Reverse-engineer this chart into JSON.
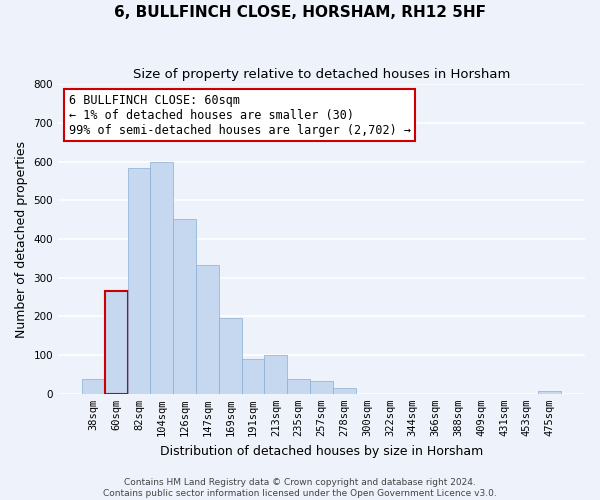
{
  "title": "6, BULLFINCH CLOSE, HORSHAM, RH12 5HF",
  "subtitle": "Size of property relative to detached houses in Horsham",
  "bar_labels": [
    "38sqm",
    "60sqm",
    "82sqm",
    "104sqm",
    "126sqm",
    "147sqm",
    "169sqm",
    "191sqm",
    "213sqm",
    "235sqm",
    "257sqm",
    "278sqm",
    "300sqm",
    "322sqm",
    "344sqm",
    "366sqm",
    "388sqm",
    "409sqm",
    "431sqm",
    "453sqm",
    "475sqm"
  ],
  "bar_heights": [
    38,
    265,
    585,
    600,
    453,
    332,
    197,
    90,
    100,
    38,
    32,
    14,
    0,
    0,
    0,
    0,
    0,
    0,
    0,
    0,
    8
  ],
  "bar_color": "#c5d8f0",
  "highlight_bar_index": 1,
  "highlight_edge_color": "#cc0000",
  "ylim": [
    0,
    800
  ],
  "yticks": [
    0,
    100,
    200,
    300,
    400,
    500,
    600,
    700,
    800
  ],
  "ylabel": "Number of detached properties",
  "xlabel": "Distribution of detached houses by size in Horsham",
  "annotation_title": "6 BULLFINCH CLOSE: 60sqm",
  "annotation_line1": "← 1% of detached houses are smaller (30)",
  "annotation_line2": "99% of semi-detached houses are larger (2,702) →",
  "footer1": "Contains HM Land Registry data © Crown copyright and database right 2024.",
  "footer2": "Contains public sector information licensed under the Open Government Licence v3.0.",
  "background_color": "#eef2fa",
  "grid_color": "#ffffff",
  "title_fontsize": 11,
  "subtitle_fontsize": 9.5,
  "axis_label_fontsize": 9,
  "tick_fontsize": 7.5,
  "annotation_fontsize": 8.5,
  "footer_fontsize": 6.5
}
